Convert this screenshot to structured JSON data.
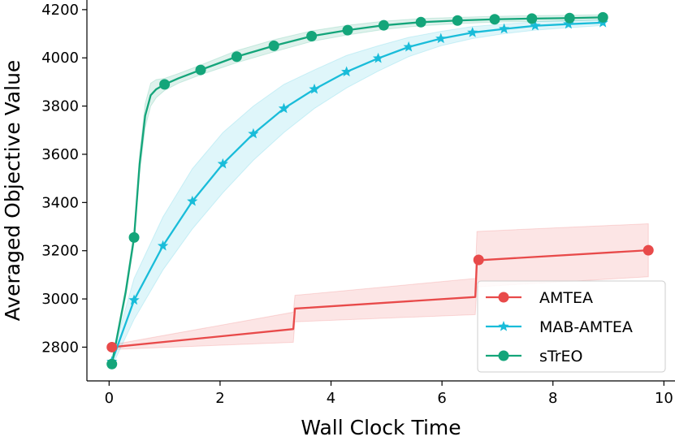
{
  "chart_data": {
    "type": "line",
    "xlabel": "Wall Clock Time",
    "ylabel": "Averaged Objective Value",
    "xlim": [
      -0.4,
      10.2
    ],
    "ylim": [
      2660,
      4240
    ],
    "xticks": [
      "0",
      "2",
      "4",
      "6",
      "8",
      "10"
    ],
    "yticks": [
      "2800",
      "3000",
      "3200",
      "3400",
      "3600",
      "3800",
      "4000",
      "4200"
    ],
    "legend_position": "lower-right",
    "grid": false,
    "series": [
      {
        "name": "AMTEA",
        "color": "#e84a4a",
        "marker": "circle",
        "points": [
          [
            0.05,
            2800
          ],
          [
            3.32,
            2875
          ],
          [
            3.35,
            2960
          ],
          [
            6.6,
            3008
          ],
          [
            6.63,
            3160
          ],
          [
            9.72,
            3202
          ]
        ],
        "marker_points": [
          [
            0.05,
            2800
          ],
          [
            6.66,
            3162
          ],
          [
            9.72,
            3202
          ]
        ],
        "band_upper": [
          [
            0.05,
            2810
          ],
          [
            3.32,
            2945
          ],
          [
            3.35,
            3015
          ],
          [
            6.6,
            3085
          ],
          [
            6.63,
            3280
          ],
          [
            9.72,
            3312
          ]
        ],
        "band_lower": [
          [
            0.05,
            2790
          ],
          [
            3.32,
            2820
          ],
          [
            3.35,
            2905
          ],
          [
            6.6,
            2935
          ],
          [
            6.63,
            3050
          ],
          [
            9.72,
            3092
          ]
        ]
      },
      {
        "name": "MAB-AMTEA",
        "color": "#19bcd9",
        "marker": "star",
        "points": [
          [
            0.05,
            2740
          ],
          [
            0.45,
            2995
          ],
          [
            0.97,
            3220
          ],
          [
            1.5,
            3405
          ],
          [
            2.05,
            3560
          ],
          [
            2.6,
            3685
          ],
          [
            3.15,
            3790
          ],
          [
            3.7,
            3870
          ],
          [
            4.28,
            3942
          ],
          [
            4.85,
            3998
          ],
          [
            5.4,
            4045
          ],
          [
            5.98,
            4080
          ],
          [
            6.55,
            4105
          ],
          [
            7.12,
            4120
          ],
          [
            7.68,
            4133
          ],
          [
            8.28,
            4140
          ],
          [
            8.9,
            4146
          ]
        ],
        "band_upper": [
          [
            0.05,
            2760
          ],
          [
            0.45,
            3085
          ],
          [
            0.97,
            3340
          ],
          [
            1.5,
            3540
          ],
          [
            2.05,
            3690
          ],
          [
            2.6,
            3800
          ],
          [
            3.15,
            3890
          ],
          [
            3.7,
            3950
          ],
          [
            4.28,
            4010
          ],
          [
            4.85,
            4050
          ],
          [
            5.4,
            4085
          ],
          [
            5.98,
            4110
          ],
          [
            6.55,
            4130
          ],
          [
            7.12,
            4140
          ],
          [
            7.68,
            4150
          ],
          [
            8.28,
            4155
          ],
          [
            8.9,
            4158
          ]
        ],
        "band_lower": [
          [
            0.05,
            2720
          ],
          [
            0.45,
            2915
          ],
          [
            0.97,
            3120
          ],
          [
            1.5,
            3290
          ],
          [
            2.05,
            3440
          ],
          [
            2.6,
            3575
          ],
          [
            3.15,
            3690
          ],
          [
            3.7,
            3790
          ],
          [
            4.28,
            3875
          ],
          [
            4.85,
            3945
          ],
          [
            5.4,
            4005
          ],
          [
            5.98,
            4050
          ],
          [
            6.55,
            4080
          ],
          [
            7.12,
            4100
          ],
          [
            7.68,
            4115
          ],
          [
            8.28,
            4125
          ],
          [
            8.9,
            4134
          ]
        ]
      },
      {
        "name": "sTrEO",
        "color": "#14a57a",
        "marker": "circle",
        "points": [
          [
            0.05,
            2730
          ],
          [
            0.3,
            3030
          ],
          [
            0.45,
            3255
          ],
          [
            0.55,
            3560
          ],
          [
            0.65,
            3760
          ],
          [
            0.75,
            3845
          ],
          [
            0.85,
            3870
          ],
          [
            1.0,
            3890
          ],
          [
            1.25,
            3915
          ],
          [
            1.65,
            3950
          ],
          [
            2.3,
            4005
          ],
          [
            2.97,
            4050
          ],
          [
            3.65,
            4090
          ],
          [
            4.3,
            4115
          ],
          [
            4.95,
            4135
          ],
          [
            5.62,
            4148
          ],
          [
            6.28,
            4155
          ],
          [
            6.95,
            4160
          ],
          [
            7.62,
            4163
          ],
          [
            8.3,
            4165
          ],
          [
            8.9,
            4168
          ]
        ],
        "marker_points": [
          [
            0.05,
            2730
          ],
          [
            0.45,
            3255
          ],
          [
            1.0,
            3890
          ],
          [
            1.65,
            3950
          ],
          [
            2.3,
            4005
          ],
          [
            2.97,
            4050
          ],
          [
            3.65,
            4090
          ],
          [
            4.3,
            4115
          ],
          [
            4.95,
            4135
          ],
          [
            5.62,
            4148
          ],
          [
            6.28,
            4155
          ],
          [
            6.95,
            4160
          ],
          [
            7.62,
            4163
          ],
          [
            8.3,
            4165
          ],
          [
            8.9,
            4168
          ]
        ],
        "band_upper": [
          [
            0.05,
            2740
          ],
          [
            0.3,
            3050
          ],
          [
            0.45,
            3280
          ],
          [
            0.55,
            3600
          ],
          [
            0.65,
            3810
          ],
          [
            0.75,
            3895
          ],
          [
            0.85,
            3910
          ],
          [
            1.0,
            3915
          ],
          [
            1.25,
            3935
          ],
          [
            1.65,
            3970
          ],
          [
            2.3,
            4030
          ],
          [
            2.97,
            4075
          ],
          [
            3.65,
            4112
          ],
          [
            4.3,
            4135
          ],
          [
            4.95,
            4152
          ],
          [
            5.62,
            4163
          ],
          [
            6.28,
            4168
          ],
          [
            6.95,
            4172
          ],
          [
            7.62,
            4175
          ],
          [
            8.3,
            4177
          ],
          [
            8.9,
            4179
          ]
        ],
        "band_lower": [
          [
            0.05,
            2720
          ],
          [
            0.3,
            3010
          ],
          [
            0.45,
            3230
          ],
          [
            0.55,
            3520
          ],
          [
            0.65,
            3710
          ],
          [
            0.75,
            3800
          ],
          [
            0.85,
            3835
          ],
          [
            1.0,
            3865
          ],
          [
            1.25,
            3895
          ],
          [
            1.65,
            3930
          ],
          [
            2.3,
            3980
          ],
          [
            2.97,
            4025
          ],
          [
            3.65,
            4068
          ],
          [
            4.3,
            4095
          ],
          [
            4.95,
            4118
          ],
          [
            5.62,
            4133
          ],
          [
            6.28,
            4142
          ],
          [
            6.95,
            4148
          ],
          [
            7.62,
            4151
          ],
          [
            8.3,
            4153
          ],
          [
            8.9,
            4157
          ]
        ]
      }
    ]
  }
}
